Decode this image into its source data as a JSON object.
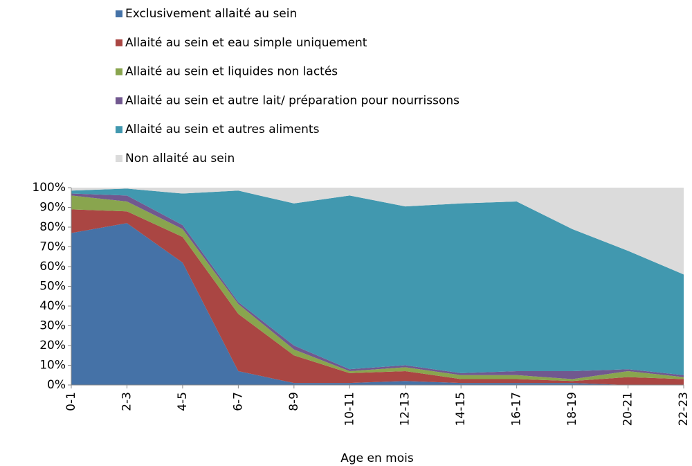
{
  "chart_data": {
    "type": "stacked_area_100",
    "x_label": "Age en mois",
    "categories": [
      "0-1",
      "2-3",
      "4-5",
      "6-7",
      "8-9",
      "10-11",
      "12-13",
      "14-15",
      "16-17",
      "18-19",
      "20-21",
      "22-23"
    ],
    "series": [
      {
        "name": "Exclusivement allaité au sein",
        "color": "#4572a7",
        "values": [
          77,
          82,
          62,
          7,
          1,
          1,
          2,
          1,
          1,
          1,
          0,
          0
        ]
      },
      {
        "name": "Allaité au sein et eau simple uniquement",
        "color": "#aa4643",
        "values": [
          12,
          6,
          13,
          29,
          14,
          5,
          5,
          2,
          2,
          1,
          4,
          3
        ]
      },
      {
        "name": "Allaité au sein et liquides non lactés",
        "color": "#89a54e",
        "values": [
          7,
          5,
          4,
          5,
          3,
          1,
          2,
          2,
          2,
          1,
          3,
          1
        ]
      },
      {
        "name": "Allaité au sein et autre lait/ préparation pour nourrissons",
        "color": "#71588f",
        "values": [
          1,
          3,
          2,
          1,
          2,
          1,
          1,
          1,
          2,
          4,
          1,
          1
        ]
      },
      {
        "name": "Allaité au sein et autres aliments",
        "color": "#4198af",
        "values": [
          1.5,
          3.5,
          16,
          56.5,
          72,
          88,
          80.5,
          86,
          86,
          72,
          60,
          51
        ]
      },
      {
        "name": "Non allaité au sein",
        "color": "#dbdbdb",
        "values": [
          1.5,
          0.5,
          3,
          1.5,
          8,
          4,
          9.5,
          8,
          7,
          21,
          32,
          44
        ]
      }
    ],
    "ylim": [
      0,
      100
    ],
    "yticks": [
      {
        "value": 0,
        "label": "0%"
      },
      {
        "value": 10,
        "label": "10%"
      },
      {
        "value": 20,
        "label": "20%"
      },
      {
        "value": 30,
        "label": "30%"
      },
      {
        "value": 40,
        "label": "40%"
      },
      {
        "value": 50,
        "label": "50%"
      },
      {
        "value": 60,
        "label": "60%"
      },
      {
        "value": 70,
        "label": "70%"
      },
      {
        "value": 80,
        "label": "80%"
      },
      {
        "value": 90,
        "label": "90%"
      },
      {
        "value": 100,
        "label": "100%"
      }
    ],
    "legend": "top"
  }
}
